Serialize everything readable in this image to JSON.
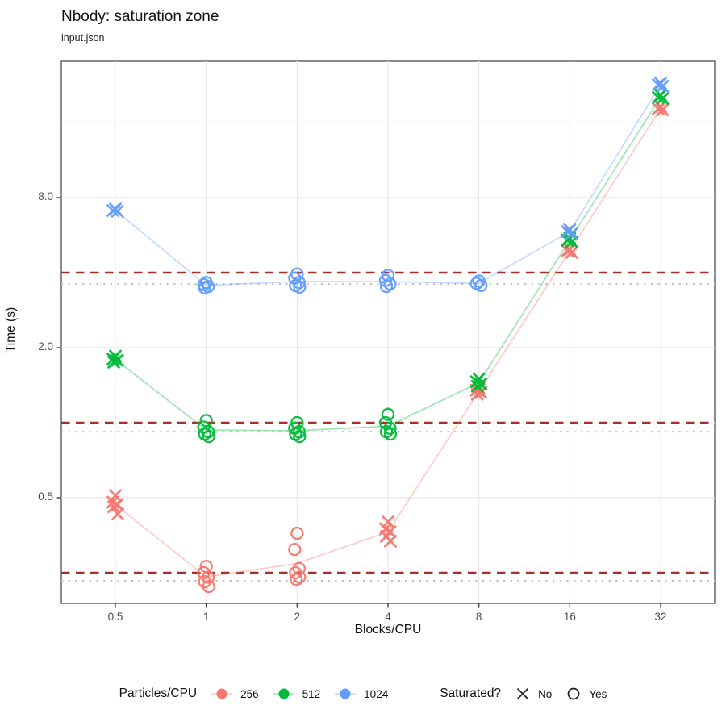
{
  "page": {
    "title": "Nbody: saturation zone",
    "subtitle": "input.json"
  },
  "axes": {
    "x_title": "Blocks/CPU",
    "y_title": "Time (s)",
    "x_tick_labels": [
      "0.5",
      "1",
      "2",
      "4",
      "8",
      "16",
      "32"
    ],
    "y_tick_labels": [
      "0.5",
      "2.0",
      "8.0"
    ]
  },
  "legend": {
    "color": {
      "title": "Particles/CPU",
      "items": [
        {
          "label": "256",
          "color": "#F8766D"
        },
        {
          "label": "512",
          "color": "#00BA38"
        },
        {
          "label": "1024",
          "color": "#619CFF"
        }
      ]
    },
    "shape": {
      "title": "Saturated?",
      "items": [
        {
          "label": "No",
          "shape": "x"
        },
        {
          "label": "Yes",
          "shape": "circle"
        }
      ]
    }
  },
  "chart_data": {
    "type": "scatter",
    "title": "Nbody: saturation zone",
    "subtitle": "input.json",
    "xlabel": "Blocks/CPU",
    "ylabel": "Time (s)",
    "x_scale": "log2",
    "y_scale": "log2",
    "x_ticks": [
      0.5,
      1,
      2,
      4,
      8,
      16,
      32
    ],
    "y_ticks": [
      0.5,
      2.0,
      8.0
    ],
    "y_minor_gridlines": [
      1.0,
      4.0,
      16.0
    ],
    "x_range": [
      0.33,
      48
    ],
    "y_range": [
      0.19,
      28
    ],
    "grid": true,
    "legend_position": "bottom",
    "ref_lines": {
      "dashed": {
        "color": "#A5302A",
        "values": [
          0.25,
          1.0,
          4.0
        ]
      },
      "dotted": {
        "color": "#BDBDBD",
        "values": [
          0.232,
          0.92,
          3.6
        ]
      }
    },
    "series": [
      {
        "name": "256",
        "color": "#F8766D",
        "points": [
          {
            "x": 0.5,
            "saturated": false,
            "y": [
              0.51,
              0.48,
              0.47,
              0.46,
              0.43
            ]
          },
          {
            "x": 1,
            "saturated": true,
            "y": [
              0.265,
              0.25,
              0.24,
              0.23,
              0.22
            ]
          },
          {
            "x": 2,
            "saturated": true,
            "y": [
              0.36,
              0.31,
              0.26,
              0.25,
              0.24,
              0.235
            ]
          },
          {
            "x": 4,
            "saturated": false,
            "y": [
              0.4,
              0.375,
              0.365,
              0.35,
              0.335
            ]
          },
          {
            "x": 8,
            "saturated": false,
            "y": [
              1.38,
              1.35,
              1.32,
              1.3
            ]
          },
          {
            "x": 16,
            "saturated": false,
            "y": [
              4.95,
              4.9,
              4.82
            ]
          },
          {
            "x": 32,
            "saturated": false,
            "y": [
              18.5,
              18.2,
              18.0
            ]
          }
        ]
      },
      {
        "name": "512",
        "color": "#00BA38",
        "points": [
          {
            "x": 0.5,
            "saturated": false,
            "y": [
              1.85,
              1.8,
              1.78,
              1.75
            ]
          },
          {
            "x": 1,
            "saturated": true,
            "y": [
              1.02,
              0.96,
              0.92,
              0.9,
              0.88
            ]
          },
          {
            "x": 2,
            "saturated": true,
            "y": [
              1.0,
              0.95,
              0.92,
              0.9,
              0.88
            ]
          },
          {
            "x": 4,
            "saturated": true,
            "y": [
              1.08,
              1.0,
              0.95,
              0.92,
              0.9
            ]
          },
          {
            "x": 8,
            "saturated": false,
            "y": [
              1.5,
              1.46,
              1.43,
              1.4
            ]
          },
          {
            "x": 16,
            "saturated": false,
            "y": [
              5.5,
              5.4,
              5.32
            ]
          },
          {
            "x": 32,
            "saturated": false,
            "y": [
              20.6,
              20.2,
              20.0
            ]
          }
        ]
      },
      {
        "name": "1024",
        "color": "#619CFF",
        "points": [
          {
            "x": 0.5,
            "saturated": false,
            "y": [
              7.2,
              7.1,
              7.05
            ]
          },
          {
            "x": 1,
            "saturated": true,
            "y": [
              3.65,
              3.58,
              3.52,
              3.48
            ]
          },
          {
            "x": 2,
            "saturated": true,
            "y": [
              3.95,
              3.8,
              3.65,
              3.55,
              3.5
            ]
          },
          {
            "x": 4,
            "saturated": true,
            "y": [
              3.9,
              3.72,
              3.6,
              3.52
            ]
          },
          {
            "x": 8,
            "saturated": true,
            "y": [
              3.7,
              3.62,
              3.55
            ]
          },
          {
            "x": 16,
            "saturated": false,
            "y": [
              5.95,
              5.85,
              5.75
            ]
          },
          {
            "x": 32,
            "saturated": false,
            "y": [
              23.0,
              22.7,
              22.4
            ]
          }
        ]
      }
    ]
  }
}
